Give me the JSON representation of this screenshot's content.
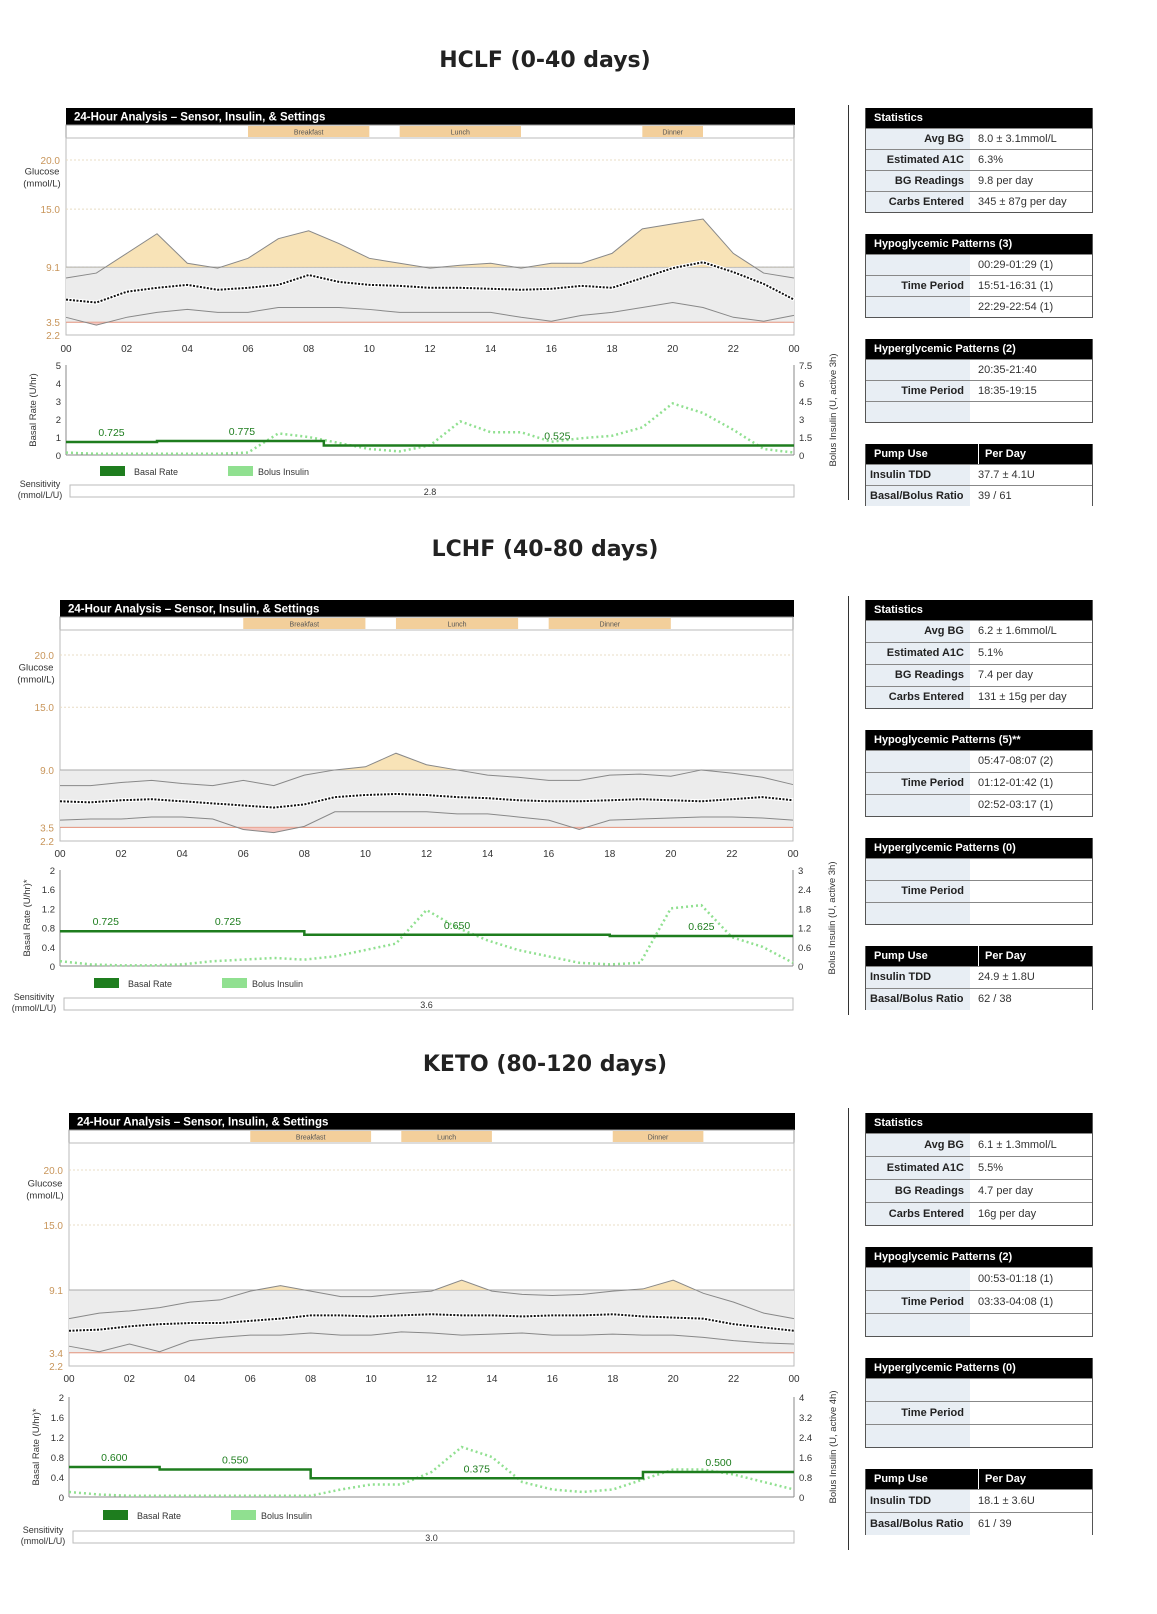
{
  "panels": [
    {
      "title": "HCLF (0-40 days)",
      "stats": {
        "header": "Statistics",
        "rows": [
          {
            "label": "Avg BG",
            "value": "8.0 ± 3.1mmol/L"
          },
          {
            "label": "Estimated A1C",
            "value": "6.3%"
          },
          {
            "label": "BG Readings",
            "value": "9.8 per day"
          },
          {
            "label": "Carbs Entered",
            "value": "345 ± 87g per day"
          }
        ]
      },
      "hypo": {
        "header": "Hypoglycemic Patterns (3)",
        "label": "Time Period",
        "periods": [
          "00:29-01:29 (1)",
          "15:51-16:31 (1)",
          "22:29-22:54 (1)"
        ]
      },
      "hyper": {
        "header": "Hyperglycemic Patterns (2)",
        "label": "Time Period",
        "periods": [
          "20:35-21:40",
          "18:35-19:15",
          ""
        ]
      },
      "pump": {
        "header": "Pump Use",
        "header2": "Per Day",
        "rows": [
          {
            "label": "Insulin TDD",
            "value": "37.7 ± 4.1U"
          },
          {
            "label": "Basal/Bolus Ratio",
            "value": "39 / 61"
          }
        ]
      }
    },
    {
      "title": "LCHF (40-80 days)",
      "stats": {
        "header": "Statistics",
        "rows": [
          {
            "label": "Avg BG",
            "value": "6.2 ± 1.6mmol/L"
          },
          {
            "label": "Estimated A1C",
            "value": "5.1%"
          },
          {
            "label": "BG Readings",
            "value": "7.4 per day"
          },
          {
            "label": "Carbs Entered",
            "value": "131 ± 15g per day"
          }
        ]
      },
      "hypo": {
        "header": "Hypoglycemic Patterns (5)**",
        "label": "Time Period",
        "periods": [
          "05:47-08:07 (2)",
          "01:12-01:42 (1)",
          "02:52-03:17 (1)"
        ]
      },
      "hyper": {
        "header": "Hyperglycemic Patterns (0)",
        "label": "Time Period",
        "periods": [
          "",
          "",
          ""
        ]
      },
      "pump": {
        "header": "Pump Use",
        "header2": "Per Day",
        "rows": [
          {
            "label": "Insulin TDD",
            "value": "24.9 ± 1.8U"
          },
          {
            "label": "Basal/Bolus Ratio",
            "value": "62 / 38"
          }
        ]
      }
    },
    {
      "title": "KETO (80-120 days)",
      "stats": {
        "header": "Statistics",
        "rows": [
          {
            "label": "Avg BG",
            "value": "6.1 ± 1.3mmol/L"
          },
          {
            "label": "Estimated A1C",
            "value": "5.5%"
          },
          {
            "label": "BG Readings",
            "value": "4.7 per day"
          },
          {
            "label": "Carbs Entered",
            "value": "16g per day"
          }
        ]
      },
      "hypo": {
        "header": "Hypoglycemic Patterns (2)",
        "label": "Time Period",
        "periods": [
          "00:53-01:18 (1)",
          "03:33-04:08 (1)",
          ""
        ]
      },
      "hyper": {
        "header": "Hyperglycemic Patterns (0)",
        "label": "Time Period",
        "periods": [
          "",
          "",
          ""
        ]
      },
      "pump": {
        "header": "Pump Use",
        "header2": "Per Day",
        "rows": [
          {
            "label": "Insulin TDD",
            "value": "18.1 ± 3.6U"
          },
          {
            "label": "Basal/Bolus Ratio",
            "value": "61 / 39"
          }
        ]
      }
    }
  ],
  "colors": {
    "header_bg": "#000000",
    "meal": "#f3cf9b",
    "target_band": "#ececec",
    "hyper_fill": "#f7deaa",
    "hypo_fill": "#f4c6c0",
    "basal": "#1e7d1e",
    "bolus": "#90e090",
    "median": "#111111",
    "tick_orange": "#c8955a"
  },
  "chart_data": [
    {
      "type": "line",
      "title": "24-Hour Analysis – Sensor, Insulin, & Settings",
      "x_ticks": [
        "00",
        "02",
        "04",
        "06",
        "08",
        "10",
        "12",
        "14",
        "16",
        "18",
        "20",
        "22",
        "00"
      ],
      "meals": [
        {
          "label": "Breakfast",
          "from": 6,
          "to": 10
        },
        {
          "label": "Lunch",
          "from": 11,
          "to": 15
        },
        {
          "label": "Dinner",
          "from": 19,
          "to": 21
        }
      ],
      "glucose": {
        "ylabel": "Glucose (mmol/L)",
        "ylim": [
          2.2,
          22.2
        ],
        "y_ticks": [
          "20.0",
          "15.0",
          "9.1",
          "3.5",
          "2.2"
        ],
        "target": [
          3.5,
          9.1
        ],
        "hours": [
          0,
          1,
          2,
          3,
          4,
          5,
          6,
          7,
          8,
          9,
          10,
          11,
          12,
          13,
          14,
          15,
          16,
          17,
          18,
          19,
          20,
          21,
          22,
          23,
          24
        ],
        "median": [
          5.8,
          5.5,
          6.6,
          7.0,
          7.3,
          6.8,
          7.0,
          7.3,
          8.3,
          7.6,
          7.3,
          7.2,
          7.0,
          7.0,
          6.9,
          6.8,
          6.9,
          7.2,
          7.0,
          8.0,
          9.0,
          9.6,
          8.6,
          7.4,
          5.8
        ],
        "upper": [
          8.0,
          8.5,
          10.5,
          12.5,
          9.5,
          9.0,
          10.0,
          12.0,
          12.8,
          11.5,
          10.0,
          9.5,
          9.0,
          9.3,
          9.5,
          9.0,
          9.5,
          9.5,
          10.5,
          13.0,
          13.5,
          14.0,
          10.5,
          8.5,
          8.0
        ],
        "lower": [
          4.0,
          3.2,
          4.0,
          4.5,
          4.8,
          4.5,
          4.5,
          5.0,
          5.0,
          5.0,
          4.8,
          4.5,
          4.5,
          4.5,
          4.5,
          4.0,
          3.6,
          4.2,
          4.5,
          5.0,
          5.5,
          5.0,
          4.0,
          3.6,
          4.2
        ]
      },
      "basal": {
        "ylabel": "Basal Rate (U/hr)",
        "ylim": [
          0,
          5
        ],
        "y_ticks": [
          "5",
          "4",
          "3",
          "2",
          "1",
          "0"
        ],
        "right_label": "Bolus Insulin (U, active 3h)",
        "right_ylim": [
          0,
          7.5
        ],
        "right_ticks": [
          "7.5",
          "6",
          "4.5",
          "3",
          "1.5",
          "0"
        ],
        "segments": [
          {
            "from": 0,
            "to": 3,
            "rate": 0.725,
            "label": "0.725"
          },
          {
            "from": 3,
            "to": 8.5,
            "rate": 0.775,
            "label": "0.775"
          },
          {
            "from": 8.5,
            "to": 24,
            "rate": 0.525,
            "label": "0.525"
          }
        ],
        "label_at": [
          1.5,
          5.8,
          16.2
        ],
        "bolus": [
          0.2,
          0.1,
          0.1,
          0.1,
          0.1,
          0.1,
          0.2,
          1.8,
          1.5,
          1.0,
          0.5,
          0.3,
          0.8,
          2.8,
          1.9,
          1.9,
          1.1,
          1.4,
          1.6,
          2.3,
          4.3,
          3.5,
          2.1,
          0.5,
          0.2
        ]
      },
      "legend": [
        "Basal Rate",
        "Bolus Insulin"
      ],
      "sensitivity_label": "Sensitivity (mmol/L/U)",
      "sensitivity": "2.8"
    },
    {
      "type": "line",
      "title": "24-Hour Analysis – Sensor, Insulin, & Settings",
      "x_ticks": [
        "00",
        "02",
        "04",
        "06",
        "08",
        "10",
        "12",
        "14",
        "16",
        "18",
        "20",
        "22",
        "00"
      ],
      "meals": [
        {
          "label": "Breakfast",
          "from": 6,
          "to": 10
        },
        {
          "label": "Lunch",
          "from": 11,
          "to": 15
        },
        {
          "label": "Dinner",
          "from": 16,
          "to": 20
        }
      ],
      "glucose": {
        "ylabel": "Glucose (mmol/L)",
        "ylim": [
          2.2,
          22.2
        ],
        "y_ticks": [
          "20.0",
          "15.0",
          "9.0",
          "3.5",
          "2.2"
        ],
        "target": [
          3.5,
          9.0
        ],
        "hours": [
          0,
          1,
          2,
          3,
          4,
          5,
          6,
          7,
          8,
          9,
          10,
          11,
          12,
          13,
          14,
          15,
          16,
          17,
          18,
          19,
          20,
          21,
          22,
          23,
          24
        ],
        "median": [
          6.0,
          5.9,
          6.1,
          6.2,
          6.0,
          5.8,
          5.6,
          5.4,
          5.7,
          6.4,
          6.6,
          6.7,
          6.6,
          6.4,
          6.3,
          6.1,
          6.0,
          6.0,
          6.1,
          6.2,
          6.1,
          6.0,
          6.2,
          6.4,
          6.1
        ],
        "upper": [
          7.5,
          7.5,
          7.8,
          8.0,
          7.7,
          7.5,
          8.0,
          7.5,
          8.5,
          9.0,
          9.3,
          10.6,
          9.5,
          9.0,
          8.5,
          8.3,
          8.0,
          8.0,
          8.5,
          8.6,
          8.4,
          9.0,
          8.7,
          8.3,
          7.6
        ],
        "lower": [
          4.2,
          4.3,
          4.3,
          4.5,
          4.5,
          4.3,
          3.3,
          3.0,
          3.6,
          5.0,
          5.0,
          5.0,
          5.0,
          4.8,
          4.8,
          4.5,
          4.2,
          3.3,
          4.2,
          4.3,
          4.4,
          4.5,
          4.5,
          4.4,
          4.2
        ]
      },
      "basal": {
        "ylabel": "Basal Rate (U/hr)*",
        "ylim": [
          0,
          2
        ],
        "y_ticks": [
          "2",
          "1.6",
          "1.2",
          "0.8",
          "0.4",
          "0"
        ],
        "right_label": "Bolus Insulin (U, active 3h)",
        "right_ylim": [
          0,
          3
        ],
        "right_ticks": [
          "3",
          "2.4",
          "1.8",
          "1.2",
          "0.6",
          "0"
        ],
        "segments": [
          {
            "from": 0,
            "to": 3,
            "rate": 0.725,
            "label": "0.725"
          },
          {
            "from": 3,
            "to": 8,
            "rate": 0.725,
            "label": "0.725"
          },
          {
            "from": 8,
            "to": 18,
            "rate": 0.65,
            "label": "0.650"
          },
          {
            "from": 18,
            "to": 24,
            "rate": 0.625,
            "label": "0.625"
          }
        ],
        "label_at": [
          1.5,
          5.5,
          13.0,
          21.0
        ],
        "bolus": [
          0.15,
          0.05,
          0.02,
          0.02,
          0.05,
          0.15,
          0.2,
          0.25,
          0.2,
          0.3,
          0.5,
          0.7,
          1.75,
          1.2,
          0.8,
          0.5,
          0.3,
          0.1,
          0.05,
          0.1,
          1.8,
          1.9,
          0.9,
          0.6,
          0.1
        ]
      },
      "legend": [
        "Basal Rate",
        "Bolus Insulin"
      ],
      "sensitivity_label": "Sensitivity (mmol/L/U)",
      "sensitivity": "3.6"
    },
    {
      "type": "line",
      "title": "24-Hour Analysis – Sensor, Insulin, & Settings",
      "x_ticks": [
        "00",
        "02",
        "04",
        "06",
        "08",
        "10",
        "12",
        "14",
        "16",
        "18",
        "20",
        "22",
        "00"
      ],
      "meals": [
        {
          "label": "Breakfast",
          "from": 6,
          "to": 10
        },
        {
          "label": "Lunch",
          "from": 11,
          "to": 14
        },
        {
          "label": "Dinner",
          "from": 18,
          "to": 21
        }
      ],
      "glucose": {
        "ylabel": "Glucose (mmol/L)",
        "ylim": [
          2.2,
          22.2
        ],
        "y_ticks": [
          "20.0",
          "15.0",
          "9.1",
          "3.4",
          "2.2"
        ],
        "target": [
          3.4,
          9.1
        ],
        "hours": [
          0,
          1,
          2,
          3,
          4,
          5,
          6,
          7,
          8,
          9,
          10,
          11,
          12,
          13,
          14,
          15,
          16,
          17,
          18,
          19,
          20,
          21,
          22,
          23,
          24
        ],
        "median": [
          5.4,
          5.5,
          5.8,
          6.0,
          6.1,
          6.1,
          6.3,
          6.5,
          6.8,
          6.8,
          6.7,
          6.8,
          6.9,
          6.8,
          6.8,
          6.7,
          6.8,
          6.8,
          6.9,
          6.7,
          6.6,
          6.5,
          6.0,
          5.7,
          5.4
        ],
        "upper": [
          6.5,
          7.0,
          7.2,
          7.5,
          8.0,
          8.2,
          9.0,
          9.5,
          9.0,
          8.5,
          8.5,
          8.8,
          9.0,
          10.0,
          9.0,
          8.7,
          8.6,
          8.7,
          9.0,
          9.2,
          10.0,
          8.8,
          8.0,
          7.0,
          6.5
        ],
        "lower": [
          4.0,
          3.5,
          4.2,
          3.5,
          4.5,
          4.8,
          5.0,
          5.0,
          5.2,
          5.0,
          5.0,
          5.3,
          5.2,
          5.0,
          5.1,
          5.2,
          5.0,
          5.0,
          5.1,
          5.0,
          5.0,
          4.8,
          4.5,
          4.3,
          4.2
        ]
      },
      "basal": {
        "ylabel": "Basal Rate (U/hr)*",
        "ylim": [
          0,
          2
        ],
        "y_ticks": [
          "2",
          "1.6",
          "1.2",
          "0.8",
          "0.4",
          "0"
        ],
        "right_label": "Bolus Insulin (U, active 4h)",
        "right_ylim": [
          0,
          4
        ],
        "right_ticks": [
          "4",
          "3.2",
          "2.4",
          "1.6",
          "0.8",
          "0"
        ],
        "segments": [
          {
            "from": 0,
            "to": 3,
            "rate": 0.6,
            "label": "0.600"
          },
          {
            "from": 3,
            "to": 8,
            "rate": 0.55,
            "label": "0.550"
          },
          {
            "from": 8,
            "to": 19,
            "rate": 0.375,
            "label": "0.375"
          },
          {
            "from": 19,
            "to": 24,
            "rate": 0.5,
            "label": "0.500"
          }
        ],
        "label_at": [
          1.5,
          5.5,
          13.5,
          21.5
        ],
        "bolus": [
          0.2,
          0.1,
          0.05,
          0.05,
          0.05,
          0.05,
          0.05,
          0.05,
          0.05,
          0.3,
          0.5,
          0.5,
          1.0,
          2.0,
          1.6,
          0.6,
          0.3,
          0.2,
          0.3,
          0.7,
          1.1,
          1.1,
          0.9,
          0.6,
          0.3
        ]
      },
      "legend": [
        "Basal Rate",
        "Bolus Insulin"
      ],
      "sensitivity_label": "Sensitivity (mmol/L/U)",
      "sensitivity": "3.0"
    }
  ]
}
